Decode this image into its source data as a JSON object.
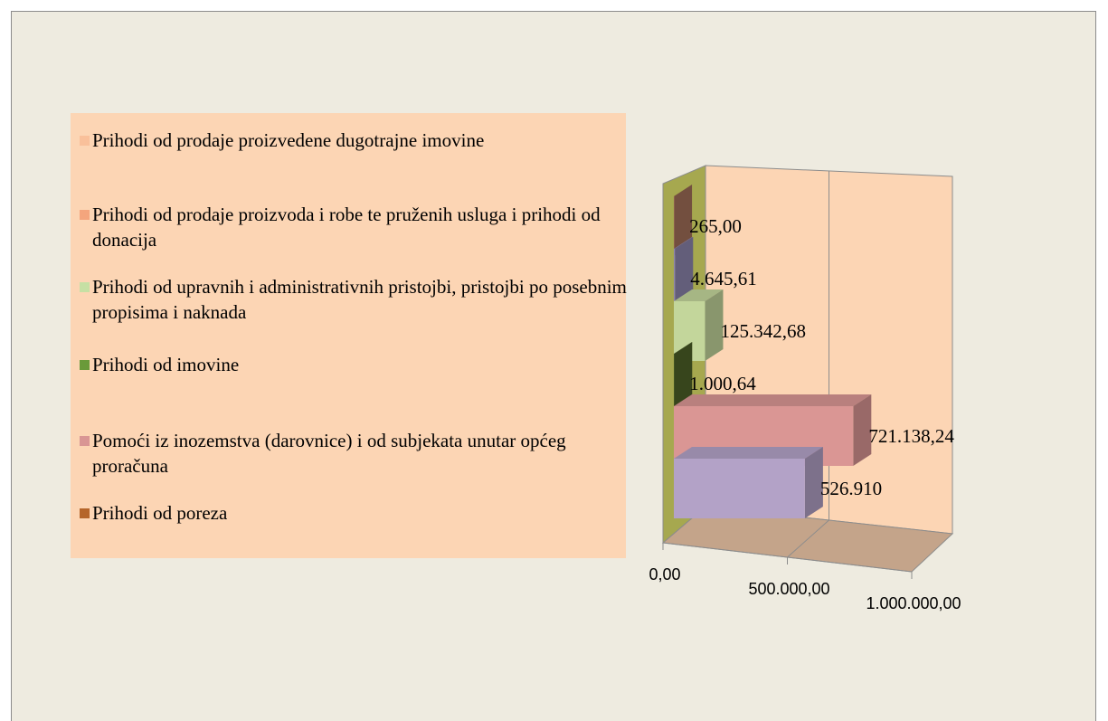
{
  "chart_data": {
    "type": "bar3d_horizontal",
    "categories": [
      "Prihodi od poreza",
      "Pomoći iz inozemstva (darovnice) i od subjekata unutar općeg proračuna",
      "Prihodi od imovine",
      "Prihodi od upravnih i administrativnih pristojbi, pristojbi po posebnim propisima i naknada",
      "Prihodi od prodaje proizvoda i robe te pruženih usluga i prihodi od donacija",
      "Prihodi od prodaje proizvedene dugotrajne imovine"
    ],
    "values": [
      526910,
      721138.24,
      1000.64,
      125342.68,
      4645.61,
      265
    ],
    "value_labels": [
      "526.910",
      "721.138,24",
      "1.000,64",
      "125.342,68",
      "4.645,61",
      "265,00"
    ],
    "colors": [
      "#b3a2c7",
      "#da9694",
      "#4f6228",
      "#c3d69b",
      "#8e86ae",
      "#a5715a"
    ],
    "legend_colors": [
      "#b5652a",
      "#d99694",
      "#6a9a3a",
      "#c6e0a4",
      "#f4a57d",
      "#f9c09a"
    ],
    "xlim": [
      0,
      1000000
    ],
    "xticks": [
      {
        "value": 0,
        "label": "0,00"
      },
      {
        "value": 500000,
        "label": "500.000,00"
      },
      {
        "value": 1000000,
        "label": "1.000.000,00"
      }
    ],
    "grid": true,
    "legend": "left"
  }
}
